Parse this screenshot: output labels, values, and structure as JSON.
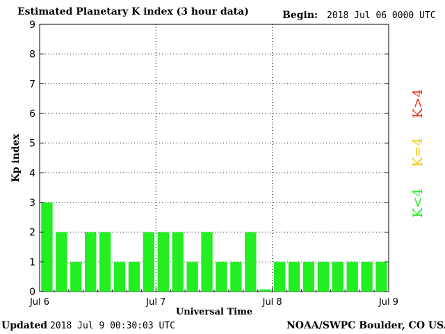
{
  "header": {
    "title": "Estimated Planetary K index (3 hour data)",
    "begin_label": "Begin:",
    "begin_value": "2018 Jul 06 0000 UTC"
  },
  "footer": {
    "updated_label": "Updated",
    "updated_value": "2018 Jul  9 00:30:03 UTC",
    "credit": "NOAA/SWPC Boulder, CO USA"
  },
  "legend": {
    "items": [
      {
        "label": "K<4",
        "color": "#22ee22"
      },
      {
        "label": "K=4",
        "color": "#eecc00"
      },
      {
        "label": "K>4",
        "color": "#ee3322"
      }
    ]
  },
  "chart_data": {
    "type": "bar",
    "xlabel": "Universal Time",
    "ylabel": "Kp index",
    "ylim": [
      0,
      9
    ],
    "yticks": [
      0,
      1,
      2,
      3,
      4,
      5,
      6,
      7,
      8,
      9
    ],
    "xticks": [
      "Jul 6",
      "Jul 7",
      "Jul 8",
      "Jul 9"
    ],
    "grid": true,
    "bar_color": "#22ee22",
    "values": [
      3,
      2,
      1,
      2,
      2,
      1,
      1,
      2,
      2,
      2,
      1,
      2,
      1,
      1,
      2,
      0.07,
      1,
      1,
      1,
      1,
      1,
      1,
      1,
      1
    ]
  }
}
